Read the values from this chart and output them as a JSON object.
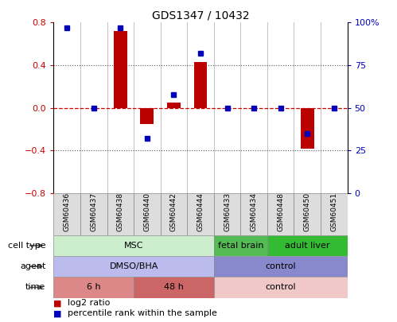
{
  "title": "GDS1347 / 10432",
  "samples": [
    "GSM60436",
    "GSM60437",
    "GSM60438",
    "GSM60440",
    "GSM60442",
    "GSM60444",
    "GSM60433",
    "GSM60434",
    "GSM60448",
    "GSM60450",
    "GSM60451"
  ],
  "log2_ratio": [
    0.0,
    0.0,
    0.72,
    -0.15,
    0.05,
    0.43,
    0.0,
    0.0,
    0.0,
    -0.38,
    0.0
  ],
  "percentile_rank": [
    97,
    50,
    97,
    32,
    58,
    82,
    50,
    50,
    50,
    35,
    50
  ],
  "ylim_left": [
    -0.8,
    0.8
  ],
  "ylim_right": [
    0,
    100
  ],
  "yticks_left": [
    -0.8,
    -0.4,
    0.0,
    0.4,
    0.8
  ],
  "yticks_right": [
    0,
    25,
    50,
    75,
    100
  ],
  "ytick_labels_right": [
    "0",
    "25",
    "50",
    "75",
    "100%"
  ],
  "bar_color": "#bb0000",
  "dot_color": "#0000bb",
  "hline_color": "#cc0000",
  "dotted_color": "#555555",
  "cell_type_groups": [
    {
      "label": "MSC",
      "start": 0,
      "end": 6,
      "color": "#cceecc"
    },
    {
      "label": "fetal brain",
      "start": 6,
      "end": 8,
      "color": "#55bb55"
    },
    {
      "label": "adult liver",
      "start": 8,
      "end": 11,
      "color": "#33bb33"
    }
  ],
  "agent_groups": [
    {
      "label": "DMSO/BHA",
      "start": 0,
      "end": 6,
      "color": "#bbbbee"
    },
    {
      "label": "control",
      "start": 6,
      "end": 11,
      "color": "#8888cc"
    }
  ],
  "time_groups": [
    {
      "label": "6 h",
      "start": 0,
      "end": 3,
      "color": "#dd8888"
    },
    {
      "label": "48 h",
      "start": 3,
      "end": 6,
      "color": "#cc6666"
    },
    {
      "label": "control",
      "start": 6,
      "end": 11,
      "color": "#f0c8c8"
    }
  ],
  "row_labels": [
    "cell type",
    "agent",
    "time"
  ],
  "legend_items": [
    {
      "label": "log2 ratio",
      "color": "#bb0000"
    },
    {
      "label": "percentile rank within the sample",
      "color": "#0000bb"
    }
  ],
  "bar_width": 0.5,
  "dot_size": 28
}
